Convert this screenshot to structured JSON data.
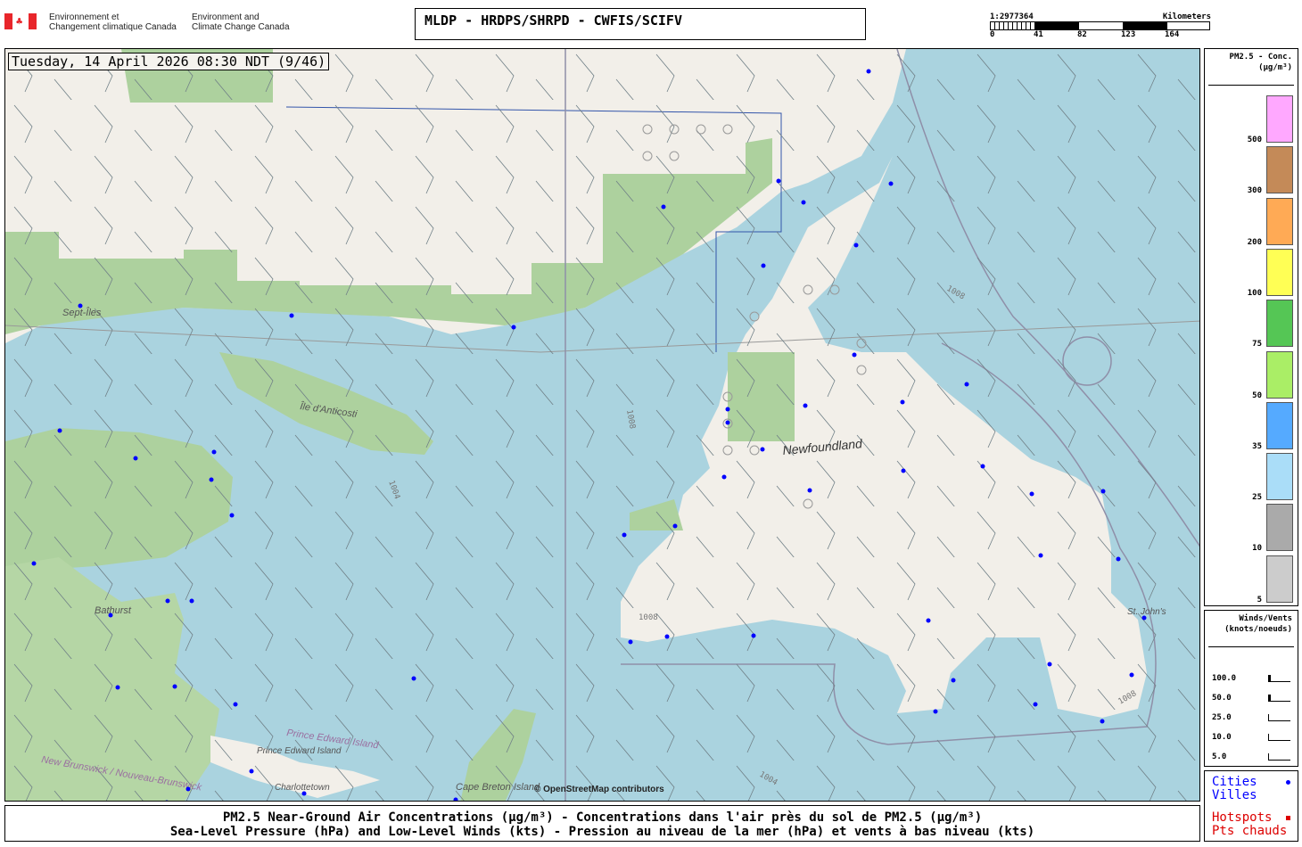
{
  "header": {
    "agency_fr": [
      "Environnement et",
      "Changement climatique Canada"
    ],
    "agency_en": [
      "Environment and",
      "Climate Change Canada"
    ],
    "title": "MLDP - HRDPS/SHRPD - CWFIS/SCIFV"
  },
  "scale": {
    "ratio": "1:2977364",
    "unit": "Kilometers",
    "ticks": [
      "0",
      "41",
      "82",
      "123",
      "164"
    ]
  },
  "map": {
    "datetime": "Tuesday, 14 April 2026 08:30 NDT (9/46)",
    "attribution": "© OpenStreetMap contributors",
    "places": [
      "Sept-Îles",
      "Île d'Anticosti",
      "Newfoundland",
      "Bathurst",
      "St. John's",
      "Prince Edward Island",
      "Prince Edward Island",
      "Charlottetown",
      "Cape Breton Island",
      "New Brunswick / Nouveau-Brunswick"
    ],
    "isobars": [
      "1004",
      "1008",
      "1008",
      "1004",
      "1008",
      "1004",
      "1008"
    ]
  },
  "pm_legend": {
    "title": "PM2.5 - Conc.",
    "unit": "(µg/m³)",
    "levels": [
      {
        "label": "500",
        "color": "#ffa8ff"
      },
      {
        "label": "300",
        "color": "#c48a58"
      },
      {
        "label": "200",
        "color": "#ffaa55"
      },
      {
        "label": "100",
        "color": "#ffff55"
      },
      {
        "label": "75",
        "color": "#55c655"
      },
      {
        "label": "50",
        "color": "#aaee66"
      },
      {
        "label": "35",
        "color": "#55aaff"
      },
      {
        "label": "25",
        "color": "#aaddf8"
      },
      {
        "label": "10",
        "color": "#aaaaaa"
      },
      {
        "label": "5",
        "color": "#cccccc"
      }
    ]
  },
  "wind_legend": {
    "title": "Winds/Vents",
    "unit": "(knots/noeuds)",
    "speeds": [
      "100.0",
      "50.0",
      "25.0",
      "10.0",
      "5.0"
    ]
  },
  "markers_legend": {
    "cities": "Cities",
    "villes": "Villes",
    "hotspots": "Hotspots",
    "pts_chauds": "Pts chauds",
    "city_color": "#0000ff",
    "hotspot_color": "#dd0000"
  },
  "footer": {
    "line1": "PM2.5 Near-Ground Air Concentrations (µg/m³) - Concentrations dans l'air près du sol de PM2.5 (µg/m³)",
    "line2": "Sea-Level Pressure (hPa) and Low-Level Winds (kts) - Pression au niveau de la mer (hPa) et vents à bas niveau (kts)"
  }
}
